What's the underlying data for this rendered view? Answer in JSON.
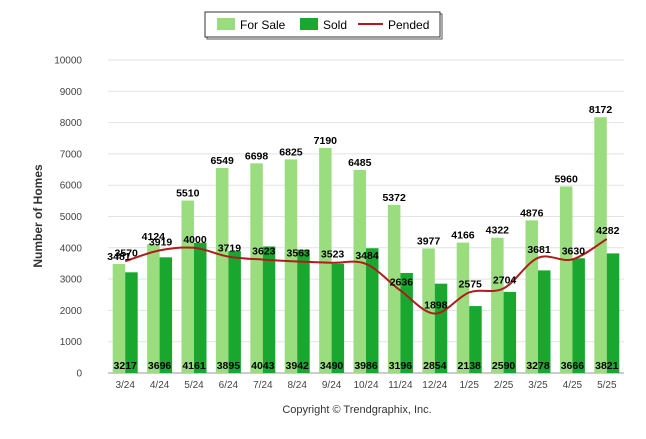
{
  "chart_data": {
    "type": "bar",
    "categories": [
      "3/24",
      "4/24",
      "5/24",
      "6/24",
      "7/24",
      "8/24",
      "9/24",
      "10/24",
      "11/24",
      "12/24",
      "1/25",
      "2/25",
      "3/25",
      "4/25",
      "5/25"
    ],
    "series": [
      {
        "name": "For Sale",
        "type": "bar",
        "color": "#99dd7f",
        "values": [
          3481,
          4124,
          5510,
          6549,
          6698,
          6825,
          7190,
          6485,
          5372,
          3977,
          4166,
          4322,
          4876,
          5960,
          8172
        ]
      },
      {
        "name": "Sold",
        "type": "bar",
        "color": "#1aa72f",
        "values": [
          3217,
          3696,
          4161,
          3895,
          4043,
          3942,
          3490,
          3986,
          3196,
          2854,
          2138,
          2590,
          3278,
          3666,
          3821
        ]
      },
      {
        "name": "Pended",
        "type": "line",
        "color": "#b01c1c",
        "values": [
          3570,
          3919,
          4000,
          3719,
          3623,
          3563,
          3523,
          3484,
          2636,
          1898,
          2575,
          2704,
          3681,
          3630,
          4282
        ]
      }
    ],
    "ylabel": "Number of Homes",
    "xlabel": "",
    "ylim": [
      0,
      10000
    ],
    "yticks": [
      0,
      1000,
      2000,
      3000,
      4000,
      5000,
      6000,
      7000,
      8000,
      9000,
      10000
    ],
    "grid": true,
    "legend": "top-center",
    "footer": "Copyright © Trendgraphix, Inc."
  }
}
